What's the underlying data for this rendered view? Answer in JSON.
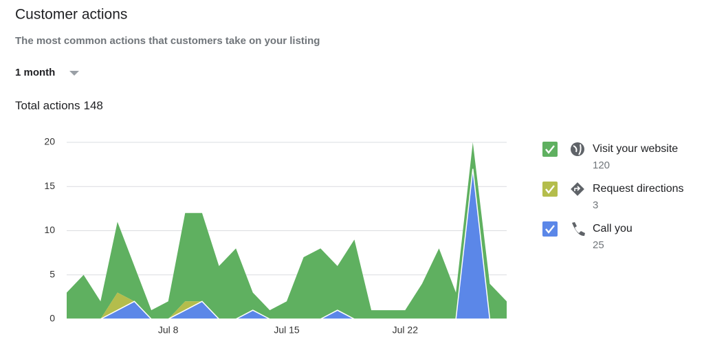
{
  "header": {
    "title": "Customer actions",
    "subtitle": "The most common actions that customers take on your listing",
    "period": "1 month",
    "total_label": "Total actions",
    "total": 148
  },
  "chart_data": {
    "type": "stacked-area",
    "categories": [
      null,
      null,
      null,
      null,
      null,
      null,
      "Jul 8",
      null,
      null,
      null,
      null,
      null,
      null,
      "Jul 15",
      null,
      null,
      null,
      null,
      null,
      null,
      "Jul 22",
      null,
      null,
      null,
      null,
      null,
      null
    ],
    "series": [
      {
        "name": "Visit your website",
        "total": 120,
        "color": "#5fb060",
        "values": [
          3,
          5,
          2,
          8,
          4,
          1,
          2,
          10,
          10,
          6,
          8,
          2,
          1,
          2,
          7,
          8,
          5,
          9,
          1,
          1,
          1,
          4,
          8,
          3,
          3,
          4,
          2
        ]
      },
      {
        "name": "Request directions",
        "total": 3,
        "color": "#b4bd4c",
        "values": [
          0,
          0,
          0,
          2,
          0,
          0,
          0,
          1,
          0,
          0,
          0,
          0,
          0,
          0,
          0,
          0,
          0,
          0,
          0,
          0,
          0,
          0,
          0,
          0,
          0,
          0,
          0
        ]
      },
      {
        "name": "Call you",
        "total": 25,
        "color": "#5b87e8",
        "values": [
          0,
          0,
          0,
          1,
          2,
          0,
          0,
          1,
          2,
          0,
          0,
          1,
          0,
          0,
          0,
          0,
          1,
          0,
          0,
          0,
          0,
          0,
          0,
          0,
          17,
          0,
          0
        ]
      }
    ],
    "ylim": [
      0,
      20
    ],
    "yticks": [
      0,
      5,
      10,
      15,
      20
    ],
    "grid": true,
    "legend": "right"
  }
}
